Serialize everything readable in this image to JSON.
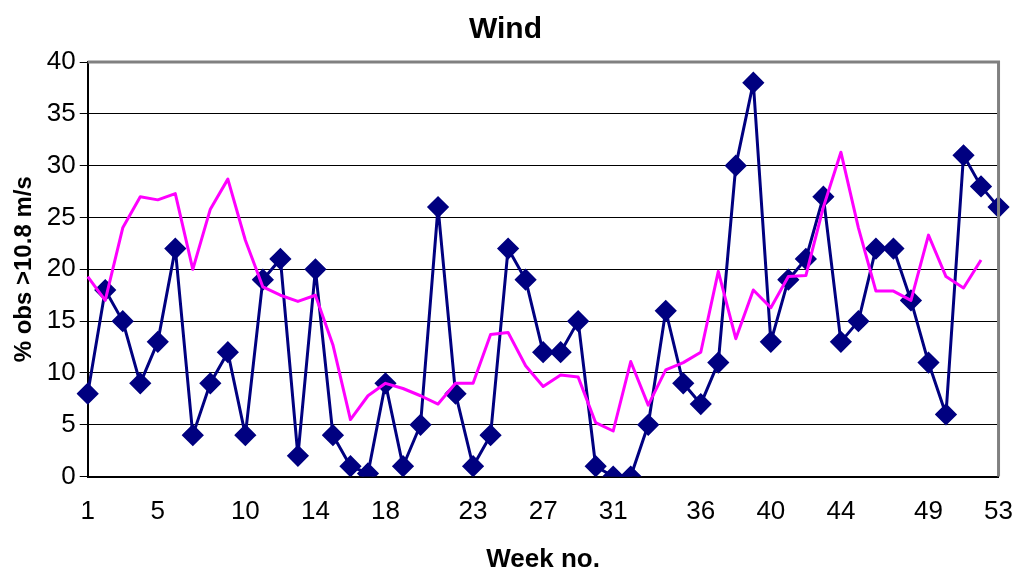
{
  "chart_data": {
    "type": "line",
    "title": "Wind",
    "xlabel": "Week no.",
    "ylabel": "% obs >10.8 m/s",
    "categories": [
      "1",
      null,
      null,
      null,
      "5",
      null,
      null,
      null,
      null,
      "10",
      null,
      null,
      null,
      "14",
      null,
      null,
      null,
      "18",
      null,
      null,
      null,
      null,
      "23",
      null,
      null,
      null,
      "27",
      null,
      null,
      null,
      "31",
      null,
      null,
      null,
      null,
      "36",
      null,
      null,
      null,
      "40",
      null,
      null,
      null,
      "44",
      null,
      null,
      null,
      null,
      "49",
      null,
      null,
      null,
      "53"
    ],
    "series": [
      {
        "color": "#000080",
        "marker": "diamond",
        "values": [
          8,
          18,
          15,
          9,
          13,
          22,
          4,
          9,
          12,
          4,
          19,
          21,
          2,
          20,
          4,
          1,
          0.3,
          9,
          1,
          5,
          26,
          8,
          1,
          4,
          22,
          19,
          12,
          12,
          15,
          1,
          0,
          0,
          5,
          16,
          9,
          7,
          11,
          30,
          38,
          13,
          19,
          21,
          27,
          13,
          15,
          22,
          22,
          17,
          11,
          6,
          31,
          28,
          26
        ]
      },
      {
        "color": "#ff00ff",
        "marker": "none",
        "values": [
          19.3,
          17,
          24,
          27,
          26.7,
          27.3,
          20,
          25.8,
          28.7,
          22.8,
          18.3,
          17.5,
          16.9,
          17.5,
          12.7,
          5.5,
          7.8,
          9,
          8.5,
          7.8,
          7,
          9,
          9,
          13.7,
          13.9,
          10.7,
          8.7,
          9.8,
          9.6,
          5.2,
          4.4,
          11.1,
          6.9,
          10.3,
          11,
          12,
          19.8,
          13.3,
          18,
          16.3,
          19.3,
          19.4,
          26,
          31.3,
          24,
          17.9,
          17.9,
          17,
          23.3,
          19.3,
          18.2,
          20.9,
          null
        ]
      }
    ],
    "ylim": [
      0,
      40
    ],
    "yticks": [
      0,
      5,
      10,
      15,
      20,
      25,
      30,
      35,
      40
    ],
    "grid": "y",
    "legend": false
  }
}
